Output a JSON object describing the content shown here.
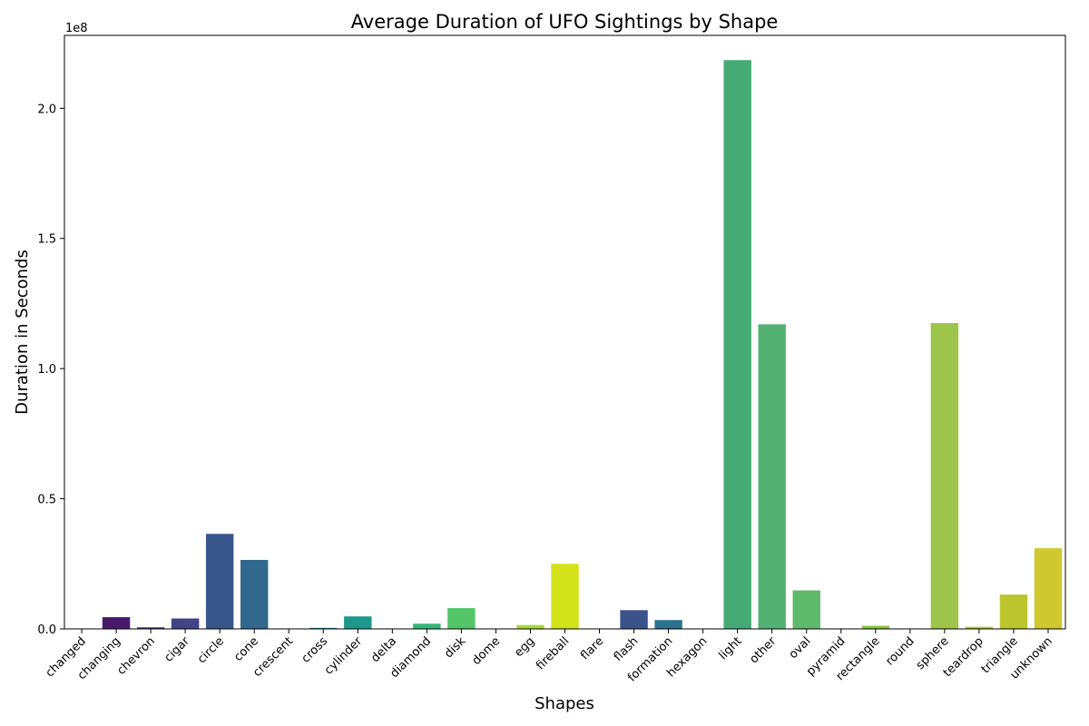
{
  "chart_data": {
    "type": "bar",
    "title": "Average Duration of UFO Sightings by Shape",
    "xlabel": "Shapes",
    "ylabel": "Duration in Seconds",
    "y_offset_label": "1e8",
    "ylim": [
      0,
      2.28
    ],
    "yticks": [
      "0.0",
      "0.5",
      "1.0",
      "1.5",
      "2.0"
    ],
    "ytick_values": [
      0,
      0.5,
      1.0,
      1.5,
      2.0
    ],
    "grid": false,
    "categories": [
      "changed",
      "changing",
      "chevron",
      "cigar",
      "circle",
      "cone",
      "crescent",
      "cross",
      "cylinder",
      "delta",
      "diamond",
      "disk",
      "dome",
      "egg",
      "fireball",
      "flare",
      "flash",
      "formation",
      "hexagon",
      "light",
      "other",
      "oval",
      "pyramid",
      "rectangle",
      "round",
      "sphere",
      "teardrop",
      "triangle",
      "unknown"
    ],
    "values": [
      0.0,
      0.045,
      0.006,
      0.04,
      0.365,
      0.265,
      0.0,
      0.004,
      0.048,
      0.0,
      0.02,
      0.08,
      0.0,
      0.015,
      0.25,
      0.0,
      0.072,
      0.034,
      0.0,
      2.185,
      1.17,
      0.148,
      0.0,
      0.012,
      0.0,
      1.175,
      0.008,
      0.132,
      0.31
    ],
    "colors": [
      "#440154",
      "#481a6c",
      "#472f7d",
      "#414487",
      "#39568c",
      "#31688e",
      "#2a788e",
      "#23888e",
      "#1f988b",
      "#22a884",
      "#35b779",
      "#54c568",
      "#7ad151",
      "#a5db36",
      "#d2e21b",
      "#fde725",
      "#3b528b",
      "#2c728e",
      "#21908d",
      "#45aa75",
      "#53b174",
      "#5eb96b",
      "#7cc13e",
      "#8cc63f",
      "#98c84a",
      "#9dc54b",
      "#b4c632",
      "#bcc52d",
      "#cfc92f"
    ]
  }
}
